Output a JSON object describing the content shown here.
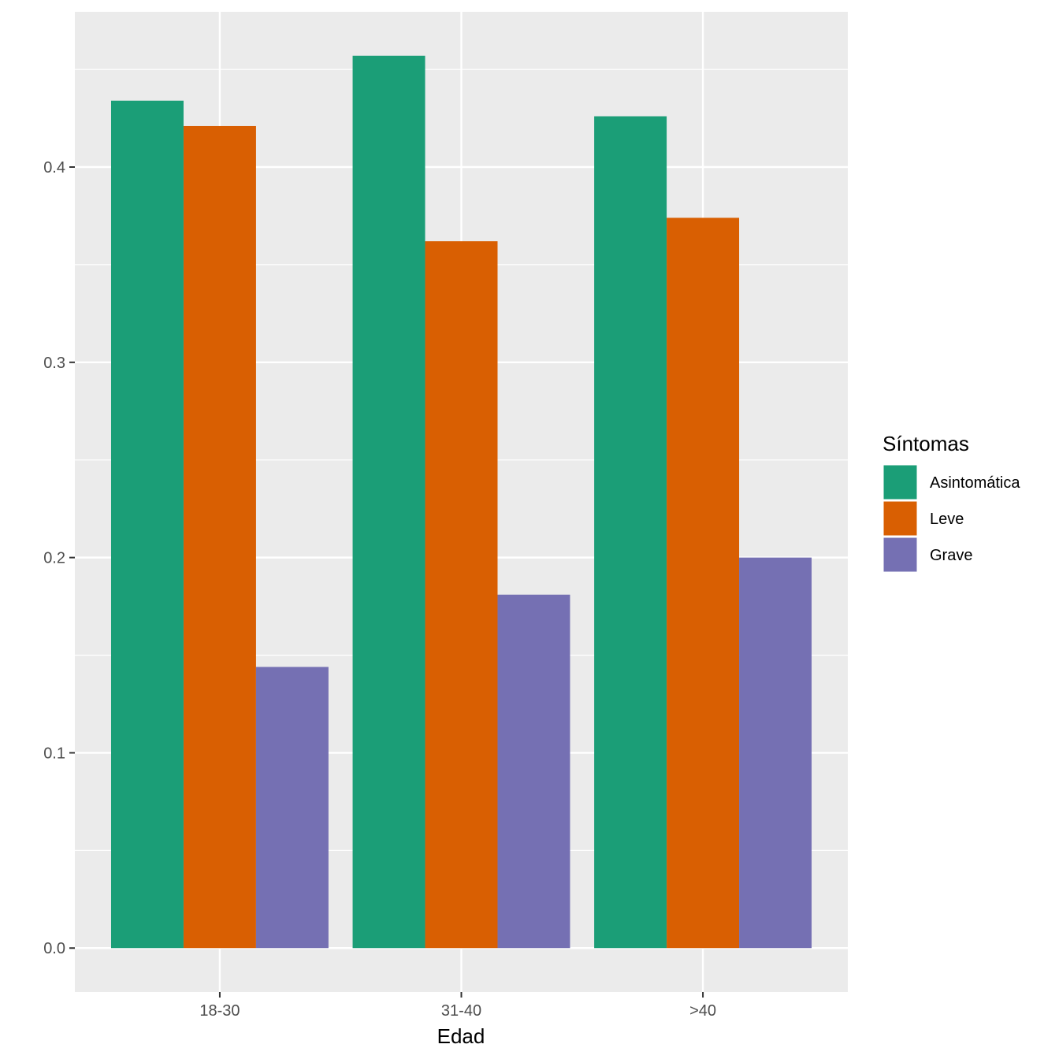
{
  "chart_data": {
    "type": "bar",
    "title": "",
    "xlabel": "Edad",
    "ylabel": "",
    "categories": [
      "18-30",
      "31-40",
      ">40"
    ],
    "series": [
      {
        "name": "Asintomática",
        "color": "#1B9E77",
        "values": [
          0.434,
          0.457,
          0.426
        ]
      },
      {
        "name": "Leve",
        "color": "#D95F02",
        "values": [
          0.421,
          0.362,
          0.374
        ]
      },
      {
        "name": "Grave",
        "color": "#7570B3",
        "values": [
          0.144,
          0.181,
          0.2
        ]
      }
    ],
    "ylim": [
      -0.0225,
      0.4795
    ],
    "yticks": [
      0.0,
      0.1,
      0.2,
      0.3,
      0.4
    ],
    "ytick_labels": [
      "0.0",
      "0.1",
      "0.2",
      "0.3",
      "0.4"
    ],
    "grid": true,
    "legend": {
      "title": "Síntomas",
      "position": "right"
    },
    "panel_background": "#EBEBEB",
    "grid_color": "#FFFFFF"
  }
}
